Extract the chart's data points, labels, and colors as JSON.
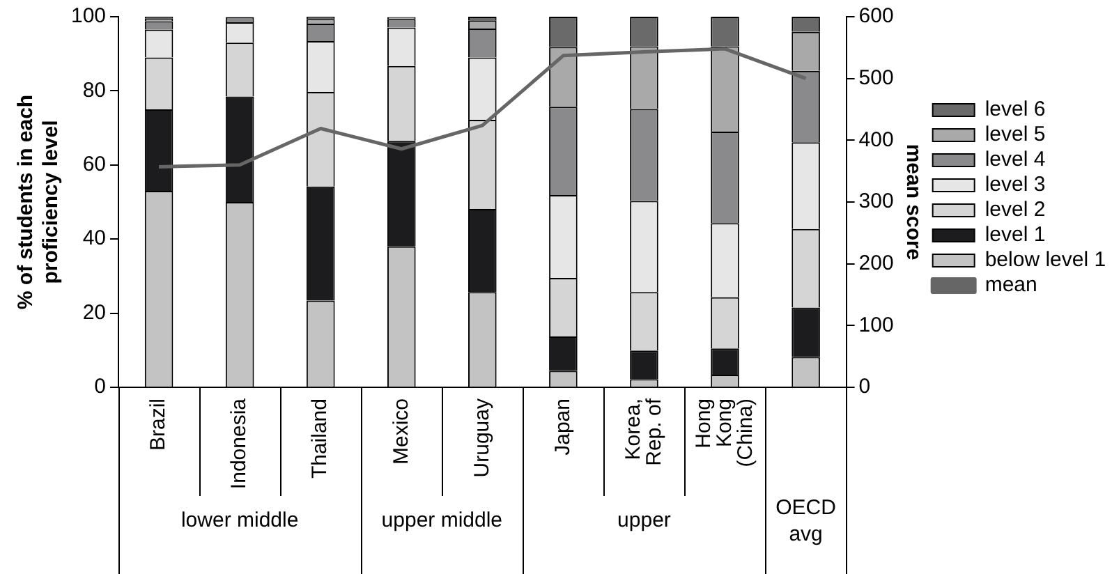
{
  "chart_data": {
    "type": "bar",
    "stacked": true,
    "ylabel": "% of students in each proficiency level",
    "y2label": "mean score",
    "categories": [
      "Brazil",
      "Indonesia",
      "Thailand",
      "Mexico",
      "Uruguay",
      "Japan",
      "Korea, Rep. of",
      "Hong Kong (China)",
      null
    ],
    "series": [
      {
        "name": "below level 1",
        "color": "#c3c3c3",
        "values": [
          53,
          50,
          23.4,
          38,
          25.7,
          4.4,
          2.2,
          3.4,
          8.2
        ]
      },
      {
        "name": "level 1",
        "color": "#1c1c1e",
        "values": [
          22,
          28.5,
          30.8,
          28.5,
          22.4,
          9.3,
          7.7,
          7.1,
          13.3
        ]
      },
      {
        "name": "level 2",
        "color": "#d5d5d5",
        "values": [
          14,
          14.5,
          25.5,
          20.2,
          24.1,
          15.8,
          15.8,
          13.8,
          21.2
        ]
      },
      {
        "name": "level 3",
        "color": "#e6e6e6",
        "values": [
          7.5,
          5.5,
          13.7,
          10.4,
          16.8,
          22.4,
          24.6,
          20,
          23.4
        ]
      },
      {
        "name": "level 4",
        "color": "#8a8a8c",
        "values": [
          2.3,
          1.4,
          4.7,
          2.3,
          7.8,
          23.8,
          24.8,
          24.7,
          19.3
        ]
      },
      {
        "name": "level 5",
        "color": "#a9a9a9",
        "values": [
          0.8,
          null,
          1.3,
          0.5,
          2.2,
          16.1,
          16.9,
          23,
          10.5
        ]
      },
      {
        "name": "level 6",
        "color": "#6a6a6a",
        "values": [
          0.4,
          null,
          0.6,
          null,
          1,
          8.2,
          8,
          8,
          4.1
        ]
      },
      {
        "name": "mean",
        "type": "line",
        "axis": "y2",
        "color": "#666666",
        "values": [
          357,
          360,
          419,
          386,
          424,
          537,
          543,
          548,
          500
        ]
      }
    ],
    "ylim": [
      0,
      100
    ],
    "yticks": [
      0,
      20,
      40,
      60,
      80,
      100
    ],
    "y2lim": [
      0,
      600
    ],
    "y2ticks": [
      0,
      100,
      200,
      300,
      400,
      500,
      600
    ],
    "grid": false,
    "legend": "right",
    "marker": "none",
    "line_style": "solid",
    "annotations": [
      "lower middle",
      "upper middle",
      "upper",
      "OECD avg"
    ]
  }
}
